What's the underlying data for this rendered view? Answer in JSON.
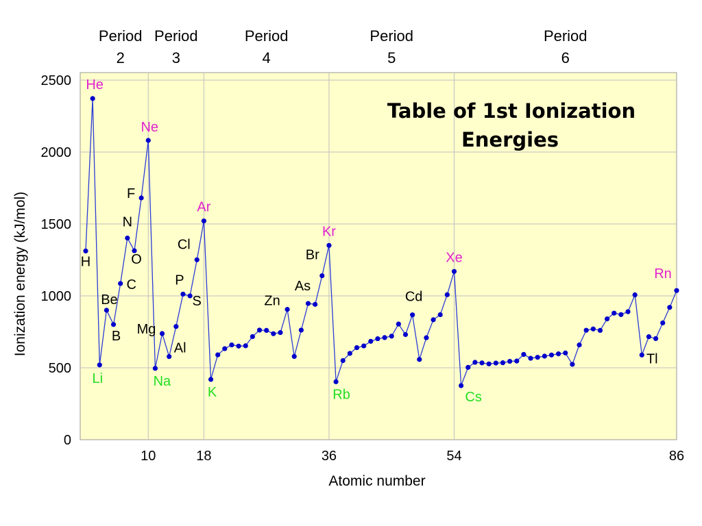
{
  "colors": {
    "plot_background": "#ffffcc",
    "line": "#2b3bd6",
    "marker": "#0000cc",
    "grid": "#bfbfbf",
    "noble_gas_label": "#e020d0",
    "alkali_label": "#22dd22",
    "other_label": "#000000"
  },
  "chart_data": {
    "type": "line",
    "title": "Table of 1st Ionization Energies",
    "title_lines": [
      "Table of 1st Ionization",
      "Energies"
    ],
    "xlabel": "Atomic number",
    "ylabel": "Ionization energy (kJ/mol)",
    "xlim": [
      0,
      86
    ],
    "ylim": [
      0,
      2500
    ],
    "grid": true,
    "x_ticks": [
      10,
      18,
      36,
      54,
      86
    ],
    "y_ticks": [
      0,
      500,
      1000,
      1500,
      2000,
      2500
    ],
    "periods": [
      {
        "line1": "Period",
        "line2": "2",
        "z": 6
      },
      {
        "line1": "Period",
        "line2": "3",
        "z": 14
      },
      {
        "line1": "Period",
        "line2": "4",
        "z": 27
      },
      {
        "line1": "Period",
        "line2": "5",
        "z": 45
      },
      {
        "line1": "Period",
        "line2": "6",
        "z": 70
      }
    ],
    "series": [
      {
        "x": [
          1,
          2,
          3,
          4,
          5,
          6,
          7,
          8,
          9,
          10,
          11,
          12,
          13,
          14,
          15,
          16,
          17,
          18,
          19,
          20,
          21,
          22,
          23,
          24,
          25,
          26,
          27,
          28,
          29,
          30,
          31,
          32,
          33,
          34,
          35,
          36,
          37,
          38,
          39,
          40,
          41,
          42,
          43,
          44,
          45,
          46,
          47,
          48,
          49,
          50,
          51,
          52,
          53,
          54,
          55,
          56,
          57,
          58,
          59,
          60,
          61,
          62,
          63,
          64,
          65,
          66,
          67,
          68,
          69,
          70,
          71,
          72,
          73,
          74,
          75,
          76,
          77,
          78,
          79,
          80,
          81,
          82,
          83,
          84,
          85,
          86
        ],
        "y": [
          1312,
          2372,
          520,
          900,
          801,
          1086,
          1402,
          1314,
          1681,
          2081,
          496,
          738,
          578,
          787,
          1012,
          1000,
          1251,
          1521,
          419,
          590,
          633,
          659,
          651,
          653,
          717,
          762,
          760,
          737,
          745,
          906,
          579,
          762,
          947,
          941,
          1140,
          1351,
          403,
          550,
          600,
          640,
          652,
          684,
          702,
          710,
          720,
          804,
          731,
          868,
          558,
          709,
          834,
          869,
          1008,
          1170,
          376,
          503,
          538,
          534,
          527,
          533,
          535,
          545,
          547,
          593,
          566,
          573,
          581,
          589,
          597,
          603,
          524,
          659,
          761,
          770,
          760,
          840,
          880,
          870,
          890,
          1007,
          589,
          716,
          703,
          812,
          920,
          1037
        ]
      }
    ],
    "element_labels": [
      {
        "symbol": "H",
        "z": 1,
        "group": "other"
      },
      {
        "symbol": "He",
        "z": 2,
        "group": "noble"
      },
      {
        "symbol": "Li",
        "z": 3,
        "group": "alkali"
      },
      {
        "symbol": "Be",
        "z": 4,
        "group": "other"
      },
      {
        "symbol": "B",
        "z": 5,
        "group": "other"
      },
      {
        "symbol": "C",
        "z": 6,
        "group": "other"
      },
      {
        "symbol": "N",
        "z": 7,
        "group": "other"
      },
      {
        "symbol": "O",
        "z": 8,
        "group": "other"
      },
      {
        "symbol": "F",
        "z": 9,
        "group": "other"
      },
      {
        "symbol": "Ne",
        "z": 10,
        "group": "noble"
      },
      {
        "symbol": "Na",
        "z": 11,
        "group": "alkali"
      },
      {
        "symbol": "Mg",
        "z": 12,
        "group": "other"
      },
      {
        "symbol": "Al",
        "z": 13,
        "group": "other"
      },
      {
        "symbol": "P",
        "z": 15,
        "group": "other"
      },
      {
        "symbol": "S",
        "z": 16,
        "group": "other"
      },
      {
        "symbol": "Cl",
        "z": 17,
        "group": "other"
      },
      {
        "symbol": "Ar",
        "z": 18,
        "group": "noble"
      },
      {
        "symbol": "K",
        "z": 19,
        "group": "alkali"
      },
      {
        "symbol": "Zn",
        "z": 30,
        "group": "other"
      },
      {
        "symbol": "As",
        "z": 33,
        "group": "other"
      },
      {
        "symbol": "Br",
        "z": 35,
        "group": "other"
      },
      {
        "symbol": "Kr",
        "z": 36,
        "group": "noble"
      },
      {
        "symbol": "Rb",
        "z": 37,
        "group": "alkali"
      },
      {
        "symbol": "Cd",
        "z": 48,
        "group": "other"
      },
      {
        "symbol": "Xe",
        "z": 54,
        "group": "noble"
      },
      {
        "symbol": "Cs",
        "z": 55,
        "group": "alkali"
      },
      {
        "symbol": "Tl",
        "z": 81,
        "group": "other"
      },
      {
        "symbol": "Rn",
        "z": 86,
        "group": "noble"
      }
    ]
  }
}
